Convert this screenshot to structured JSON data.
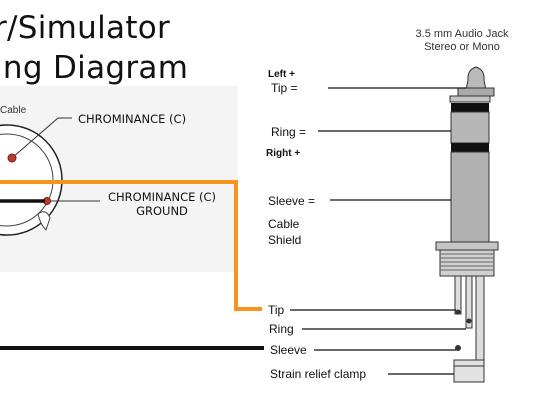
{
  "title": {
    "line1": "r/Simulator",
    "line2": "ing Diagram"
  },
  "connector": {
    "cable_label": "Cable",
    "chrominance_label": "CHROMINANCE (C)",
    "ground_label_line1": "CHROMINANCE (C)",
    "ground_label_line2": "GROUND"
  },
  "jack": {
    "title_line1": "3.5 mm Audio Jack",
    "title_line2": "Stereo or Mono",
    "left_plus": "Left +",
    "tip_eq": "Tip =",
    "ring_eq": "Ring =",
    "right_plus": "Right +",
    "sleeve_eq": "Sleeve =",
    "cable": "Cable",
    "shield": "Shield"
  },
  "terminals": {
    "tip": "Tip",
    "ring": "Ring",
    "sleeve": "Sleeve",
    "strain": "Strain relief clamp"
  },
  "colors": {
    "orange_wire": "#f7931e",
    "black_wire": "#111111",
    "red_dot": "#c0392b"
  }
}
